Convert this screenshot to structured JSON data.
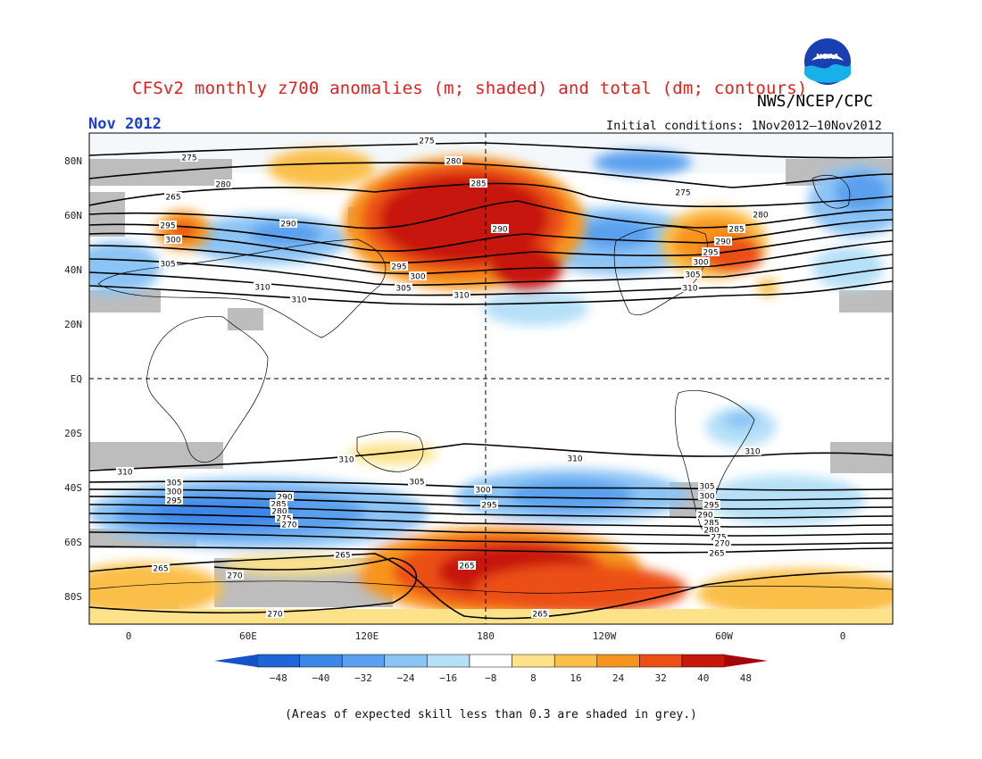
{
  "header": {
    "title": "CFSv2 monthly z700 anomalies (m; shaded) and total (dm; contours)",
    "agency": "NWS/NCEP/CPC",
    "month": "Nov 2012",
    "initial_conditions": "Initial conditions: 1Nov2012–10Nov2012",
    "logo_text": "NOAA"
  },
  "axes": {
    "lat_labels": [
      "80N",
      "60N",
      "40N",
      "20N",
      "EQ",
      "20S",
      "40S",
      "60S",
      "80S"
    ],
    "lon_labels": [
      "0",
      "60E",
      "120E",
      "180",
      "120W",
      "60W",
      "0"
    ]
  },
  "colorbar": {
    "ticks": [
      "−48",
      "−40",
      "−32",
      "−24",
      "−16",
      "−8",
      "8",
      "16",
      "24",
      "32",
      "40",
      "48"
    ],
    "colors": [
      "#1f64d8",
      "#3c86e8",
      "#5aa0ee",
      "#8cc4f5",
      "#b6e0f8",
      "#ffffff",
      "#fde28a",
      "#fbbf48",
      "#f7941d",
      "#ec4f16",
      "#c7180c"
    ],
    "low_arrow_color": "#1552c8",
    "high_arrow_color": "#a3070a"
  },
  "contour_labels": {
    "nh": [
      "275",
      "275",
      "280",
      "285",
      "290",
      "265",
      "280",
      "290",
      "295",
      "300",
      "305",
      "310",
      "310",
      "295",
      "300",
      "305",
      "310",
      "275",
      "280",
      "285",
      "290",
      "295",
      "300",
      "305",
      "310"
    ],
    "sh": [
      "310",
      "310",
      "310",
      "310",
      "305",
      "300",
      "295",
      "305",
      "300",
      "295",
      "290",
      "285",
      "280",
      "275",
      "270",
      "305",
      "300",
      "295",
      "290",
      "285",
      "280",
      "275",
      "270",
      "265",
      "270",
      "265",
      "265",
      "265",
      "270",
      "265"
    ]
  },
  "footnote": "(Areas of expected skill less than 0.3 are shaded in grey.)"
}
